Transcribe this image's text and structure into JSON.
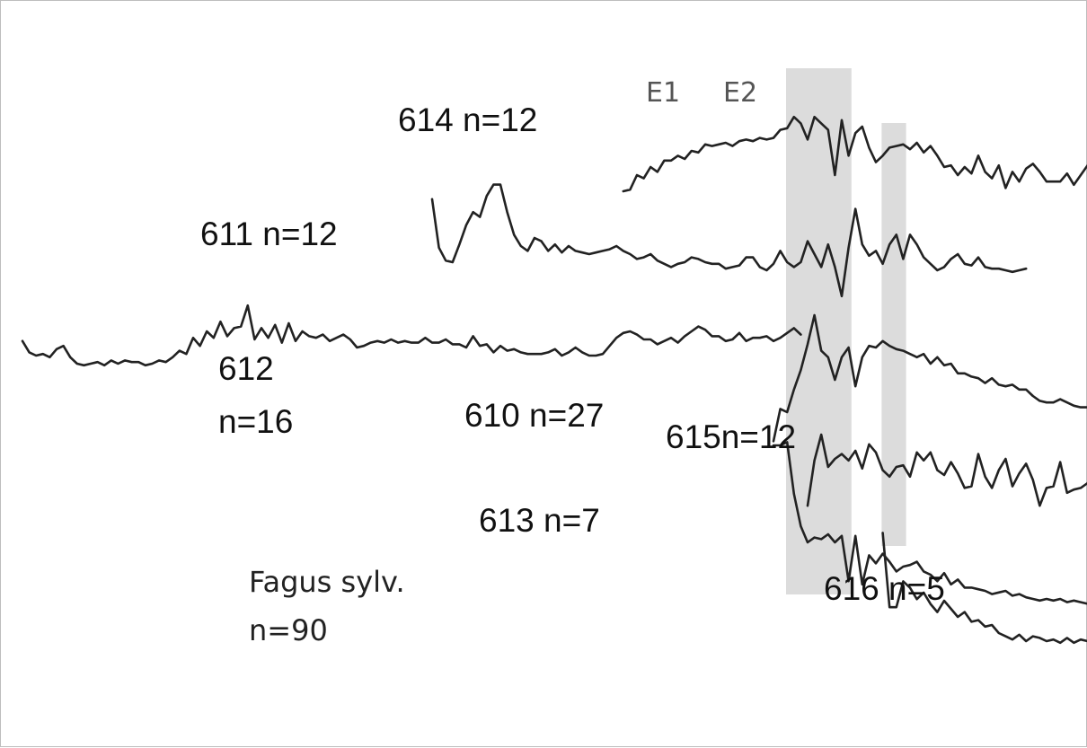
{
  "chart_data": {
    "type": "line",
    "title": "",
    "xlabel": "",
    "ylabel": "",
    "grid": false,
    "legend": "none",
    "colors": {
      "trace": "#222222",
      "event_band": "#dcdcdc"
    },
    "event_bands": [
      {
        "name": "E1",
        "x_start": 110,
        "x_end": 118
      },
      {
        "name": "E2",
        "x_start": 124,
        "x_end": 126
      }
    ],
    "annotation": {
      "species": "Fagus sylv.",
      "count": "n=90"
    },
    "series": [
      {
        "name": "614 n=12",
        "x_start": 88,
        "values": [
          0.0,
          0.05,
          0.5,
          0.4,
          0.75,
          0.6,
          0.95,
          0.95,
          1.1,
          1.0,
          1.25,
          1.2,
          1.45,
          1.4,
          1.45,
          1.5,
          1.4,
          1.55,
          1.6,
          1.55,
          1.65,
          1.6,
          1.65,
          1.9,
          1.95,
          2.3,
          2.1,
          1.6,
          2.3,
          2.1,
          1.9,
          0.5,
          2.2,
          1.1,
          1.8,
          2.0,
          1.35,
          0.9,
          1.1,
          1.35,
          1.4,
          1.45,
          1.3,
          1.5,
          1.2,
          1.4,
          1.1,
          0.75,
          0.8,
          0.5,
          0.75,
          0.55,
          1.1,
          0.6,
          0.4,
          0.8,
          0.1,
          0.6,
          0.3,
          0.7,
          0.85,
          0.6,
          0.3,
          0.3,
          0.3,
          0.55,
          0.2,
          0.5,
          0.8,
          0.25,
          0.6,
          0.8,
          0.5,
          0.0,
          0.3,
          0.4,
          0.15,
          0.1,
          0.25,
          0.35,
          0.55,
          0.6,
          0.9,
          0.35,
          0.4,
          0.1,
          0.7,
          0.75
        ]
      },
      {
        "name": "611 n=12",
        "x_start": 60,
        "values": [
          2.2,
          0.7,
          0.3,
          0.25,
          0.8,
          1.4,
          1.8,
          1.65,
          2.3,
          2.65,
          2.65,
          1.8,
          1.1,
          0.75,
          0.6,
          1.0,
          0.9,
          0.6,
          0.8,
          0.55,
          0.75,
          0.6,
          0.55,
          0.5,
          0.55,
          0.6,
          0.65,
          0.75,
          0.6,
          0.5,
          0.35,
          0.4,
          0.5,
          0.3,
          0.2,
          0.1,
          0.2,
          0.25,
          0.4,
          0.35,
          0.25,
          0.2,
          0.2,
          0.05,
          0.1,
          0.15,
          0.4,
          0.4,
          0.1,
          0.0,
          0.2,
          0.6,
          0.25,
          0.1,
          0.25,
          0.9,
          0.5,
          0.1,
          0.8,
          0.1,
          -0.8,
          0.7,
          1.9,
          0.8,
          0.45,
          0.6,
          0.2,
          0.8,
          1.1,
          0.35,
          1.1,
          0.8,
          0.4,
          0.2,
          0.0,
          0.1,
          0.35,
          0.5,
          0.2,
          0.15,
          0.4,
          0.1,
          0.05,
          0.05,
          0.0,
          -0.05,
          0.0,
          0.05
        ]
      },
      {
        "name": "612 n=16",
        "x_start": 0,
        "values": [
          0.7,
          0.35,
          0.25,
          0.3,
          0.2,
          0.45,
          0.55,
          0.2,
          0.0,
          -0.05,
          0.0,
          0.05,
          -0.05,
          0.1,
          0.0,
          0.1,
          0.05,
          0.05,
          -0.05,
          0.0,
          0.1,
          0.05,
          0.2,
          0.4,
          0.3,
          0.8,
          0.55,
          1.0,
          0.8,
          1.3,
          0.85,
          1.1,
          1.15,
          1.8,
          0.75,
          1.1,
          0.8,
          1.2,
          0.65,
          1.25,
          0.7,
          1.0,
          0.85,
          0.8,
          0.9,
          0.7,
          0.8,
          0.9,
          0.75,
          0.5,
          0.55,
          0.65,
          0.7,
          0.65,
          0.75,
          0.65,
          0.7,
          0.65,
          0.65,
          0.8,
          0.65,
          0.65,
          0.75,
          0.6,
          0.6,
          0.5,
          0.85,
          0.55,
          0.6,
          0.35,
          0.55,
          0.4,
          0.45,
          0.35,
          0.3,
          0.3,
          0.3,
          0.35,
          0.45,
          0.25,
          0.35,
          0.5,
          0.35,
          0.25,
          0.25,
          0.3,
          0.55,
          0.8,
          0.95,
          1.0,
          0.9,
          0.75,
          0.75,
          0.6,
          0.7,
          0.8,
          0.65,
          0.85,
          1.0,
          1.15,
          1.05,
          0.85,
          0.85,
          0.7,
          0.75,
          0.95,
          0.7,
          0.8,
          0.8,
          0.85,
          0.7,
          0.8,
          0.95,
          1.1,
          0.9
        ]
      },
      {
        "name": "610 n=27",
        "x_start": 110,
        "values": [
          -1.4,
          -0.4,
          -0.5,
          0.2,
          0.8,
          1.6,
          2.5,
          1.4,
          1.2,
          0.5,
          1.2,
          1.5,
          0.3,
          1.2,
          1.55,
          1.5,
          1.7,
          1.55,
          1.45,
          1.4,
          1.3,
          1.2,
          1.3,
          1.0,
          1.2,
          0.95,
          1.0,
          0.7,
          0.7,
          0.6,
          0.55,
          0.4,
          0.55,
          0.35,
          0.3,
          0.35,
          0.2,
          0.2,
          0.0,
          -0.15,
          -0.2,
          -0.2,
          -0.1,
          -0.2,
          -0.3,
          -0.35,
          -0.35,
          -0.4,
          -0.35,
          -0.4,
          -0.45,
          -0.6,
          -0.7,
          -0.8,
          -0.8,
          -0.95,
          -1.0,
          -0.9,
          -0.9
        ]
      },
      {
        "name": "615n=12",
        "x_start": 115,
        "values": [
          -0.2,
          1.2,
          2.0,
          1.0,
          1.25,
          1.4,
          1.2,
          1.5,
          0.95,
          1.7,
          1.45,
          0.9,
          0.7,
          1.0,
          1.05,
          0.7,
          1.45,
          1.2,
          1.45,
          0.9,
          0.75,
          1.15,
          0.8,
          0.35,
          0.4,
          1.4,
          0.7,
          0.35,
          0.9,
          1.25,
          0.4,
          0.8,
          1.1,
          0.6,
          -0.2,
          0.35,
          0.4,
          1.15,
          0.2,
          0.3,
          0.35,
          0.5,
          0.8,
          0.85,
          0.9,
          0.7,
          0.5,
          0.1,
          0.0,
          0.7,
          0.65
        ]
      },
      {
        "name": "613 n=7",
        "x_start": 110,
        "values": [
          0.0,
          0.0,
          0.1,
          -1.5,
          -2.5,
          -3.0,
          -2.85,
          -2.9,
          -2.75,
          -3.0,
          -2.8,
          -4.2,
          -2.8,
          -4.3,
          -3.4,
          -3.65,
          -3.35,
          -3.6,
          -3.9,
          -3.75,
          -3.7,
          -3.6,
          -3.9,
          -4.0,
          -4.2,
          -3.95,
          -4.3,
          -4.15,
          -4.4,
          -4.4,
          -4.45,
          -4.5,
          -4.6,
          -4.55,
          -4.5,
          -4.65,
          -4.6,
          -4.7,
          -4.75,
          -4.8,
          -4.75,
          -4.8,
          -4.75,
          -4.85,
          -4.8,
          -4.85,
          -4.9,
          -4.85,
          -4.85
        ]
      },
      {
        "name": "616 n=5",
        "x_start": 126,
        "values": [
          0.6,
          -1.7,
          -1.7,
          -0.9,
          -1.1,
          -1.45,
          -1.25,
          -1.6,
          -1.85,
          -1.5,
          -1.75,
          -2.0,
          -1.85,
          -2.15,
          -2.1,
          -2.3,
          -2.25,
          -2.5,
          -2.6,
          -2.7,
          -2.55,
          -2.75,
          -2.6,
          -2.65,
          -2.75,
          -2.7,
          -2.8,
          -2.65,
          -2.8,
          -2.7,
          -2.75,
          -2.6,
          -2.7
        ]
      }
    ]
  },
  "labels": {
    "s614": "614 n=12",
    "s611": "611 n=12",
    "s612a": "612",
    "s612b": "n=16",
    "s610": "610 n=27",
    "s615": "615n=12",
    "s613": "613 n=7",
    "s616": "616 n=5",
    "e1": "E1",
    "e2": "E2",
    "species": "Fagus sylv.",
    "count": "n=90"
  }
}
